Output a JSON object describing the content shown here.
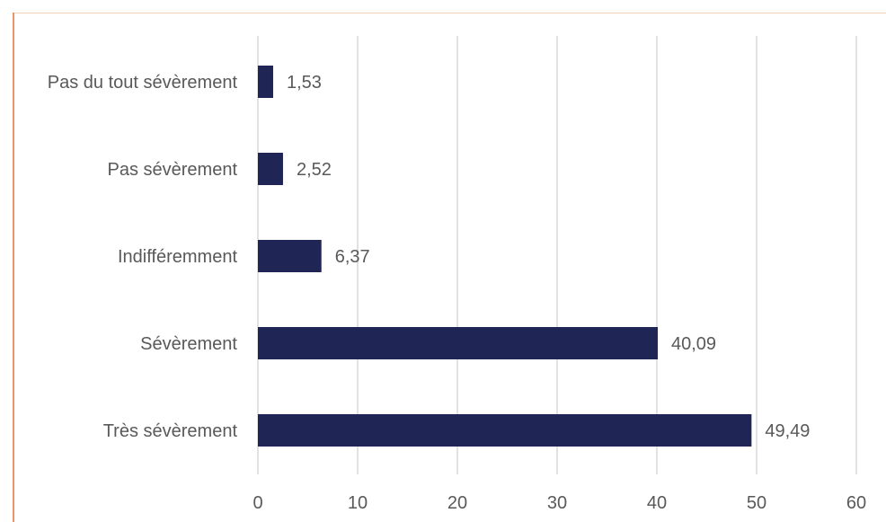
{
  "chart_data": {
    "type": "bar",
    "orientation": "horizontal",
    "categories": [
      "Pas du tout sévèrement",
      "Pas sévèrement",
      "Indifféremment",
      "Sévèrement",
      "Très sévèrement"
    ],
    "values": [
      1.53,
      2.52,
      6.37,
      40.09,
      49.49
    ],
    "value_labels": [
      "1,53",
      "2,52",
      "6,37",
      "40,09",
      "49,49"
    ],
    "xlim": [
      0,
      60
    ],
    "x_ticks": [
      0,
      10,
      20,
      30,
      40,
      50,
      60
    ],
    "grid": "vertical",
    "bar_color": "#1f2656",
    "grid_color": "#d9d9d9",
    "text_color": "#595959"
  }
}
